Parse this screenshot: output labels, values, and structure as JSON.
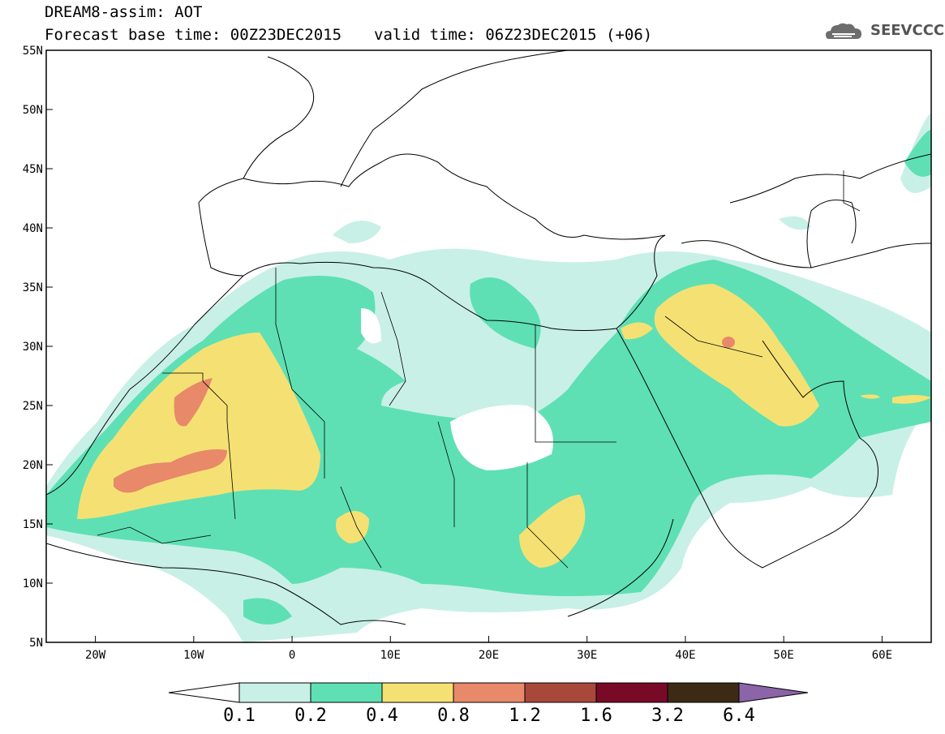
{
  "header": {
    "title": "DREAM8-assim: AOT",
    "base_time": "Forecast base time: 00Z23DEC2015",
    "valid_time": "valid time: 06Z23DEC2015 (+06)"
  },
  "logo": {
    "text": "SEEVCCC",
    "icon": "cloud-icon"
  },
  "map": {
    "variable": "AOT",
    "lat_range": [
      5,
      55
    ],
    "lon_range": [
      -25,
      65
    ],
    "lat_ticks": [
      "5N",
      "10N",
      "15N",
      "20N",
      "25N",
      "30N",
      "35N",
      "40N",
      "45N",
      "50N",
      "55N"
    ],
    "lon_ticks": [
      "20W",
      "10W",
      "0",
      "10E",
      "20E",
      "30E",
      "40E",
      "50E",
      "60E"
    ],
    "grid": false
  },
  "colorbar": {
    "labels": [
      "0.1",
      "0.2",
      "0.4",
      "0.8",
      "1.2",
      "1.6",
      "3.2",
      "6.4"
    ],
    "colors": [
      "#ffffff",
      "#c8f0e6",
      "#5ee0b4",
      "#f5e173",
      "#e8896a",
      "#a8483a",
      "#780a28",
      "#3c2a14",
      "#8c64a8"
    ]
  }
}
